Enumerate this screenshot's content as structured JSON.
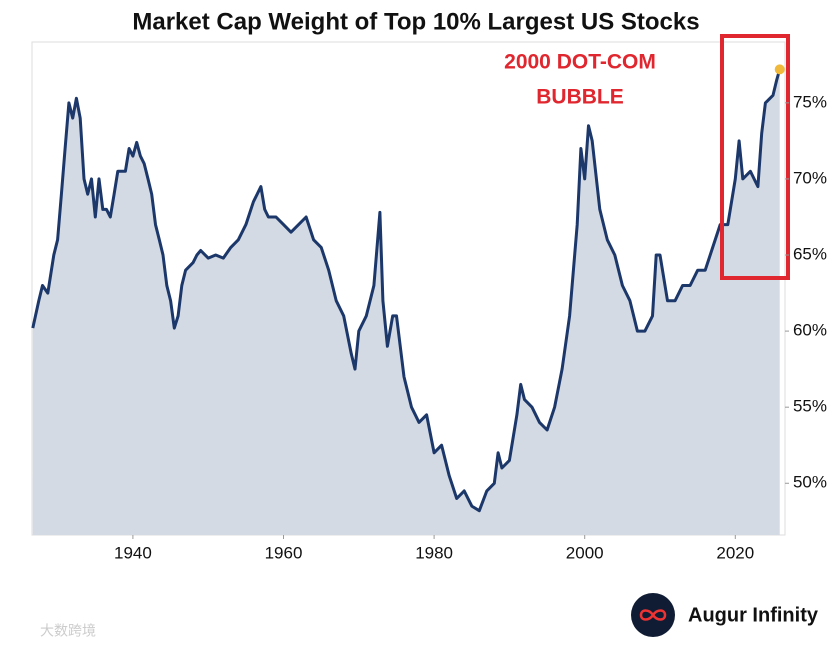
{
  "chart_data": {
    "type": "line",
    "title": "Market Cap Weight of Top 10% Largest US Stocks",
    "annotation": [
      "2000 DOT-COM",
      "BUBBLE"
    ],
    "brand": "Augur Infinity",
    "watermark": "大数跨境",
    "x": [
      1926.7,
      1927.5,
      1928,
      1928.7,
      1929.5,
      1930,
      1930.5,
      1931,
      1931.5,
      1932,
      1932.5,
      1933,
      1933.5,
      1934,
      1934.5,
      1935,
      1935.5,
      1936,
      1936.5,
      1937,
      1937.5,
      1938,
      1939,
      1939.5,
      1940,
      1940.5,
      1941,
      1941.5,
      1942,
      1942.5,
      1943,
      1943.5,
      1944,
      1944.5,
      1945,
      1945.5,
      1946,
      1946.5,
      1947,
      1948,
      1948.5,
      1949,
      1950,
      1951,
      1952,
      1953,
      1954,
      1955,
      1956,
      1957,
      1957.5,
      1958,
      1959,
      1960,
      1961,
      1962,
      1963,
      1964,
      1965,
      1966,
      1967,
      1968,
      1969,
      1969.5,
      1970,
      1971,
      1972,
      1972.8,
      1973.2,
      1973.8,
      1974.5,
      1975,
      1976,
      1977,
      1978,
      1979,
      1980,
      1981,
      1982,
      1983,
      1984,
      1985,
      1986,
      1987,
      1988,
      1988.5,
      1989,
      1990,
      1991,
      1991.5,
      1992,
      1993,
      1994,
      1995,
      1996,
      1997,
      1998,
      1999,
      1999.5,
      2000,
      2000.5,
      2001,
      2002,
      2003,
      2004,
      2005,
      2006,
      2007,
      2008,
      2009,
      2009.5,
      2010,
      2011,
      2012,
      2013,
      2014,
      2015,
      2016,
      2017,
      2018,
      2019,
      2020,
      2020.5,
      2021,
      2022,
      2023,
      2023.5,
      2024,
      2025,
      2025.5,
      2025.9
    ],
    "series": [
      {
        "color": "#1c3769",
        "fill": "#d3dae4",
        "marker_color": "#f0b93a",
        "values": [
          60.2,
          62,
          63,
          62.5,
          65,
          66,
          69,
          72,
          75,
          74,
          75.3,
          74,
          70,
          69,
          70,
          67.5,
          70,
          68,
          68,
          67.5,
          69,
          70.5,
          70.5,
          72,
          71.5,
          72.4,
          71.5,
          71,
          70,
          69,
          67,
          66,
          65,
          63,
          62,
          60.2,
          61,
          63,
          64,
          64.5,
          65,
          65.3,
          64.8,
          65,
          64.8,
          65.5,
          66,
          67,
          68.5,
          69.5,
          68,
          67.5,
          67.5,
          67,
          66.5,
          67,
          67.5,
          66,
          65.5,
          64,
          62,
          61,
          58.5,
          57.5,
          60,
          61,
          63,
          67.8,
          62,
          59,
          61,
          61,
          57,
          55,
          54,
          54.5,
          52,
          52.5,
          50.5,
          49,
          49.5,
          48.5,
          48.2,
          49.5,
          50,
          52,
          51,
          51.5,
          54.5,
          56.5,
          55.5,
          55,
          54,
          53.5,
          55,
          57.5,
          61,
          67,
          72,
          70,
          73.5,
          72.5,
          68,
          66,
          65,
          63,
          62,
          60,
          60,
          61,
          65,
          65,
          62,
          62,
          63,
          63,
          64,
          64,
          65.5,
          67,
          67,
          70,
          72.5,
          70,
          70.5,
          69.5,
          73,
          75,
          75.5,
          76.5,
          77.2
        ]
      }
    ],
    "xlim": [
      1926.6,
      2026.6
    ],
    "ylim": [
      46.6,
      79
    ],
    "xticks": [
      1940,
      1960,
      1980,
      2000,
      2020
    ],
    "yticks": [
      {
        "value": 50,
        "label": "50%"
      },
      {
        "value": 55,
        "label": "55%"
      },
      {
        "value": 60,
        "label": "60%"
      },
      {
        "value": 65,
        "label": "65%"
      },
      {
        "value": 70,
        "label": "70%"
      },
      {
        "value": 75,
        "label": "75%"
      }
    ]
  }
}
